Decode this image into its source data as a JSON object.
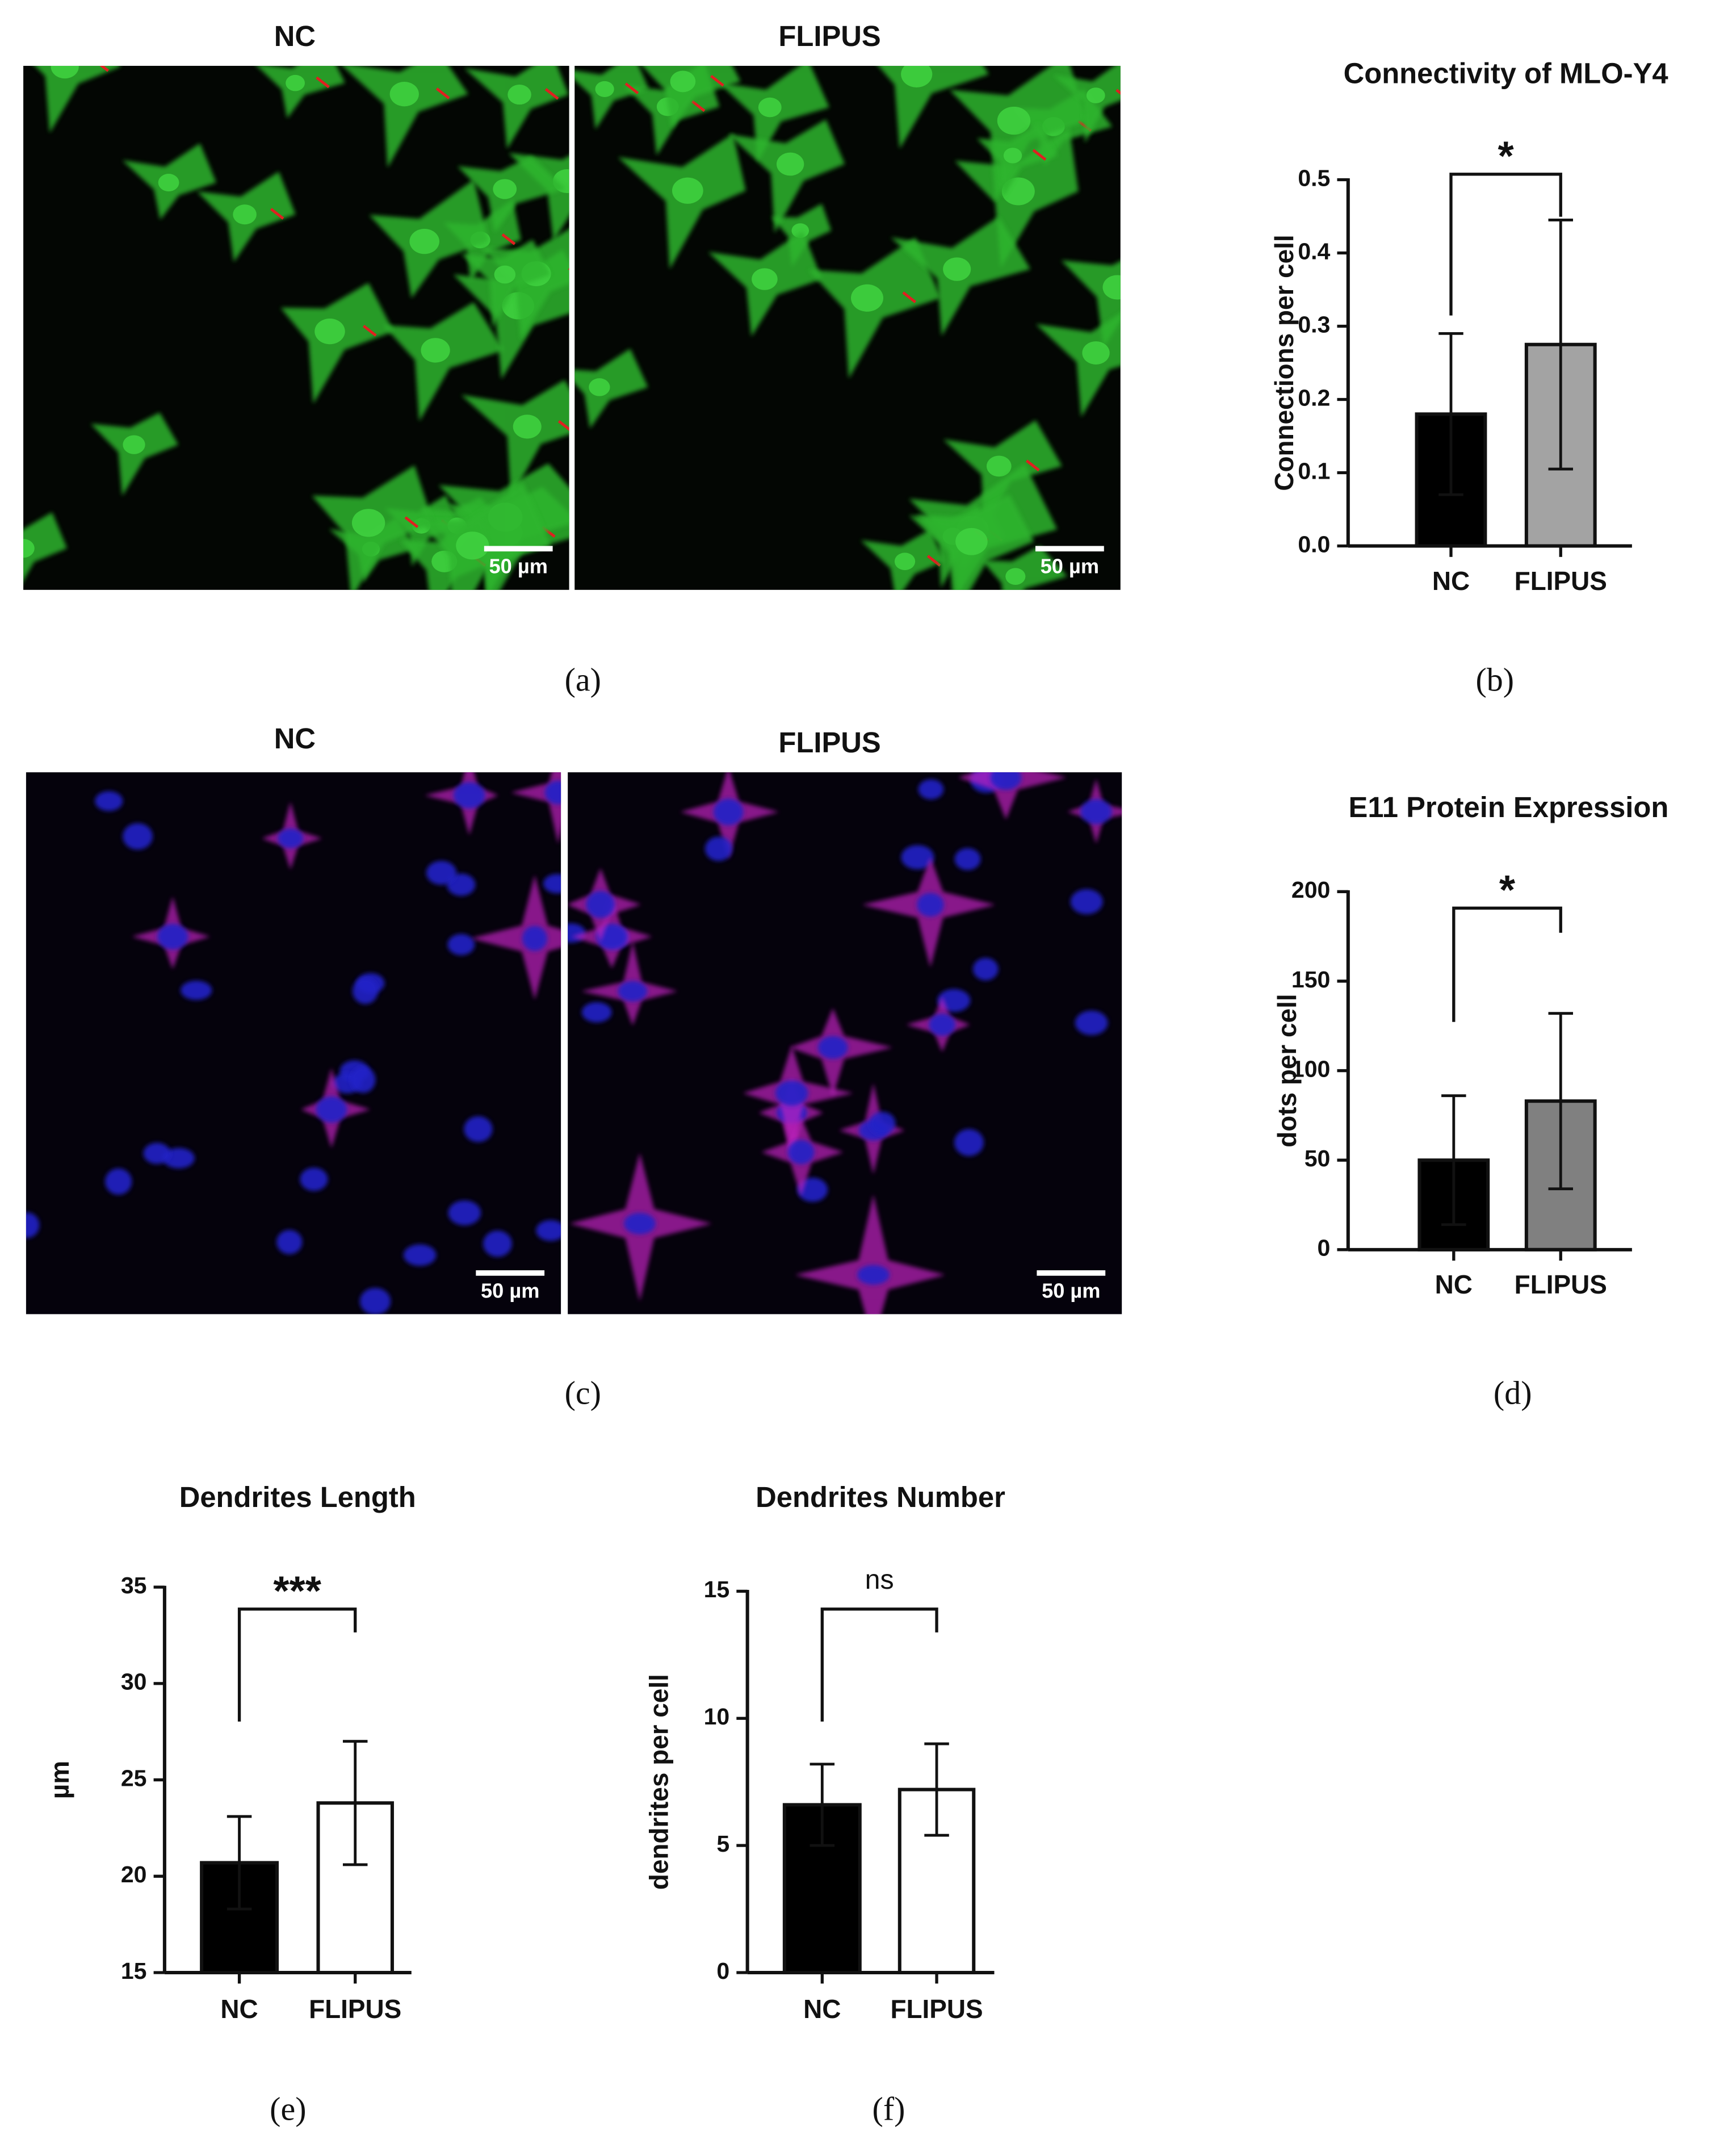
{
  "images": [
    {
      "titles": [
        "NC",
        "FLIPUS"
      ],
      "scale_bars": [
        "50 µm",
        "50 µm"
      ],
      "label": "(a)"
    },
    {
      "titles": [
        "NC",
        "FLIPUS"
      ],
      "scale_bars": [
        "50 µm",
        "50 µm"
      ],
      "label": "(c)"
    }
  ],
  "chart_data": [
    {
      "type": "bar",
      "title": "Connectivity of MLO-Y4",
      "y_label": "Connections per cell",
      "categories": [
        "NC",
        "FLIPUS"
      ],
      "values": [
        0.18,
        0.275
      ],
      "errors": [
        0.11,
        0.17
      ],
      "colors": [
        "#000000",
        "#a3a3a3"
      ],
      "ylim": [
        0,
        0.5
      ],
      "yticks": [
        {
          "value": 0,
          "label": "0.0"
        },
        0.1,
        0.2,
        0.3,
        0.4,
        0.5
      ],
      "annotation": "*",
      "label": "(b)"
    },
    {
      "type": "bar",
      "title": "E11 Protein Expression",
      "y_label": "dots per cell",
      "categories": [
        "NC",
        "FLIPUS"
      ],
      "values": [
        50,
        83
      ],
      "errors": [
        36,
        49
      ],
      "colors": [
        "#000000",
        "#808080"
      ],
      "ylim": [
        0,
        200
      ],
      "yticks": [
        0,
        50,
        100,
        150,
        200
      ],
      "annotation": "*",
      "label": "(d)"
    },
    {
      "type": "bar",
      "title": "Dendrites Length",
      "y_label": "µm",
      "categories": [
        "NC",
        "FLIPUS"
      ],
      "values": [
        20.7,
        23.8
      ],
      "errors": [
        2.4,
        3.2
      ],
      "colors": [
        "#000000",
        "#ffffff"
      ],
      "ylim": [
        15,
        35
      ],
      "yticks": [
        15,
        20,
        25,
        30,
        35
      ],
      "annotation": "***",
      "label": "(e)"
    },
    {
      "type": "bar",
      "title": "Dendrites Number",
      "y_label": "dendrites per cell",
      "categories": [
        "NC",
        "FLIPUS"
      ],
      "values": [
        6.6,
        7.2
      ],
      "errors": [
        1.6,
        1.8
      ],
      "colors": [
        "#000000",
        "#ffffff"
      ],
      "ylim": [
        0,
        15
      ],
      "yticks": [
        0,
        5,
        10,
        15
      ],
      "annotation": "ns",
      "label": "(f)"
    }
  ]
}
